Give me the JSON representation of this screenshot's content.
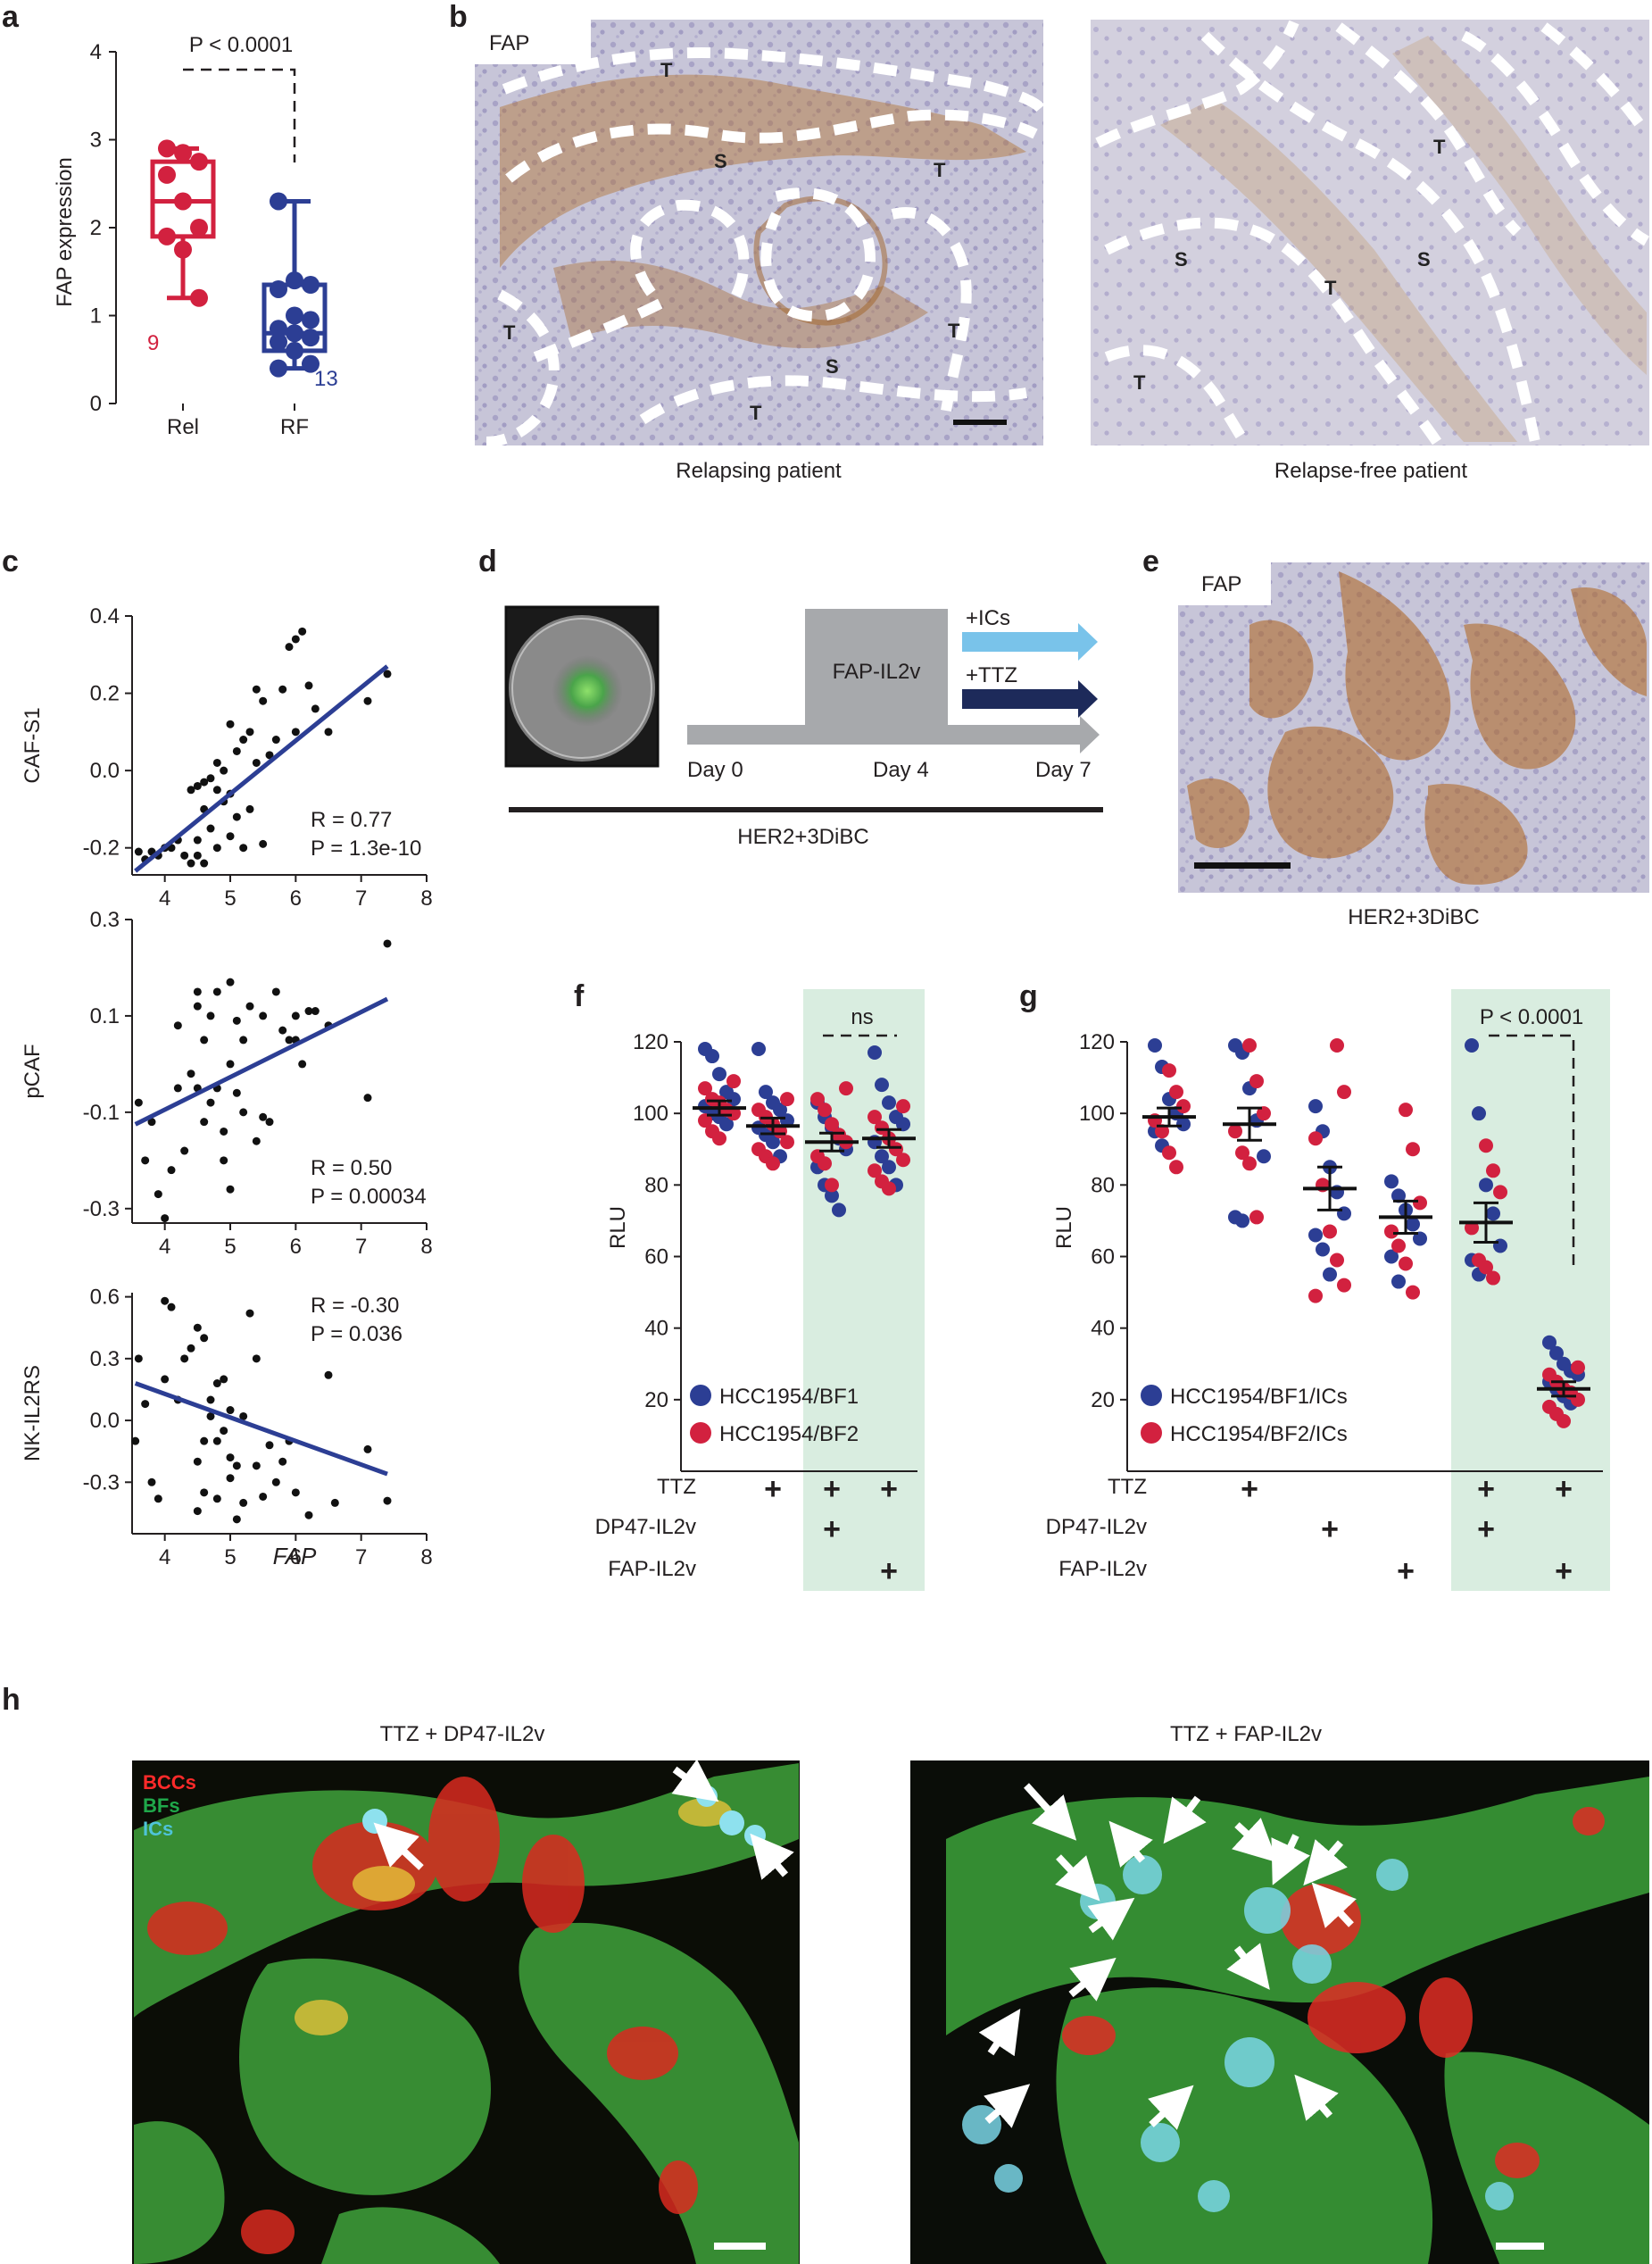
{
  "panels": {
    "a": {
      "label": "a",
      "ylabel": "FAP expression",
      "pvalue": "P < 0.0001",
      "colors": {
        "Rel": "#d2213f",
        "RF": "#2c3e94"
      },
      "n_rel": "9",
      "n_rf": "13"
    },
    "b": {
      "label": "b",
      "stain": "FAP",
      "left_caption": "Relapsing patient",
      "right_caption": "Relapse-free patient",
      "region_labels_left": [
        "T",
        "S",
        "T",
        "T",
        "T",
        "S",
        "T"
      ],
      "region_labels_right": [
        "T",
        "S",
        "S",
        "T",
        "T"
      ]
    },
    "c": {
      "label": "c",
      "xlabel": "FAP"
    },
    "d": {
      "label": "d",
      "box_label": "FAP-IL2v",
      "ics_label": "+ICs",
      "ttz_label": "+TTZ",
      "day0": "Day 0",
      "day4": "Day 4",
      "day7": "Day 7",
      "model": "HER2+3DiBC"
    },
    "e": {
      "label": "e",
      "stain": "FAP",
      "caption": "HER2+3DiBC"
    },
    "f": {
      "label": "f",
      "ylabel": "RLU",
      "ns": "ns",
      "legend": [
        "HCC1954/BF1",
        "HCC1954/BF2"
      ],
      "row_labels": [
        "TTZ",
        "DP47-IL2v",
        "FAP-IL2v"
      ],
      "plus": "+"
    },
    "g": {
      "label": "g",
      "ylabel": "RLU",
      "pvalue": "P < 0.0001",
      "legend": [
        "HCC1954/BF1/ICs",
        "HCC1954/BF2/ICs"
      ],
      "row_labels": [
        "TTZ",
        "DP47-IL2v",
        "FAP-IL2v"
      ],
      "plus": "+"
    },
    "h": {
      "label": "h",
      "left_title": "TTZ + DP47-IL2v",
      "right_title": "TTZ + FAP-IL2v",
      "legend": [
        "BCCs",
        "BFs",
        "ICs"
      ],
      "legend_colors": [
        "#ff2a2a",
        "#1fa84a",
        "#4fc3d8"
      ]
    }
  },
  "chart_data": [
    {
      "panel": "a",
      "type": "box",
      "categories": [
        "Rel",
        "RF"
      ],
      "ylabel": "FAP expression",
      "ylim": [
        0,
        4
      ],
      "yticks": [
        0,
        1,
        2,
        3,
        4
      ],
      "series": [
        {
          "name": "Rel",
          "n": "9",
          "values": [
            2.9,
            2.85,
            2.75,
            2.6,
            2.3,
            2.0,
            1.9,
            1.75,
            1.2
          ],
          "min": 1.2,
          "q1": 1.9,
          "median": 2.3,
          "q3": 2.75,
          "max": 2.9
        },
        {
          "name": "RF",
          "n": "13",
          "values": [
            2.3,
            1.4,
            1.35,
            1.3,
            1.0,
            0.95,
            0.85,
            0.8,
            0.75,
            0.7,
            0.6,
            0.45,
            0.4
          ],
          "min": 0.4,
          "q1": 0.6,
          "median": 0.8,
          "q3": 1.35,
          "max": 2.3
        }
      ],
      "annotation": "P < 0.0001"
    },
    {
      "panel": "c-top",
      "type": "scatter",
      "ylabel": "CAF-S1",
      "xlim": [
        3.5,
        8
      ],
      "ylim": [
        -0.27,
        0.4
      ],
      "xticks": [
        4,
        5,
        6,
        7,
        8
      ],
      "yticks": [
        -0.2,
        0.0,
        0.2,
        0.4
      ],
      "stats": {
        "r": "R = 0.77",
        "p": "P = 1.3e-10"
      },
      "fit": {
        "x": [
          3.55,
          7.4
        ],
        "y": [
          -0.26,
          0.27
        ]
      },
      "x": [
        3.6,
        3.7,
        3.8,
        3.9,
        4.0,
        4.1,
        4.2,
        4.3,
        4.4,
        4.4,
        4.5,
        4.5,
        4.5,
        4.6,
        4.6,
        4.6,
        4.7,
        4.7,
        4.8,
        4.8,
        4.8,
        4.9,
        4.9,
        5.0,
        5.0,
        5.0,
        5.1,
        5.1,
        5.2,
        5.2,
        5.3,
        5.3,
        5.4,
        5.4,
        5.5,
        5.5,
        5.6,
        5.7,
        5.8,
        5.9,
        6.0,
        6.0,
        6.1,
        6.2,
        6.3,
        6.5,
        7.1,
        7.4
      ],
      "y": [
        -0.21,
        -0.23,
        -0.21,
        -0.22,
        -0.2,
        -0.2,
        -0.18,
        -0.22,
        -0.24,
        -0.05,
        -0.04,
        -0.22,
        -0.18,
        -0.03,
        -0.1,
        -0.24,
        -0.02,
        -0.15,
        -0.2,
        0.02,
        -0.05,
        0.0,
        -0.08,
        0.12,
        -0.06,
        -0.17,
        0.05,
        -0.12,
        0.08,
        -0.2,
        0.1,
        -0.1,
        0.21,
        0.02,
        0.18,
        -0.19,
        0.04,
        0.08,
        0.21,
        0.32,
        0.34,
        0.1,
        0.36,
        0.22,
        0.16,
        0.1,
        0.18,
        0.25
      ]
    },
    {
      "panel": "c-mid",
      "type": "scatter",
      "ylabel": "pCAF",
      "xlim": [
        3.5,
        8
      ],
      "ylim": [
        -0.33,
        0.3
      ],
      "xticks": [
        4,
        5,
        6,
        7,
        8
      ],
      "yticks": [
        -0.3,
        -0.1,
        0.1,
        0.3
      ],
      "stats": {
        "r": "R = 0.50",
        "p": "P = 0.00034"
      },
      "fit": {
        "x": [
          3.55,
          7.4
        ],
        "y": [
          -0.125,
          0.135
        ]
      },
      "x": [
        3.6,
        3.7,
        3.8,
        3.9,
        4.0,
        4.1,
        4.2,
        4.2,
        4.3,
        4.4,
        4.5,
        4.5,
        4.5,
        4.6,
        4.6,
        4.7,
        4.7,
        4.8,
        4.8,
        4.9,
        4.9,
        5.0,
        5.0,
        5.0,
        5.1,
        5.1,
        5.2,
        5.2,
        5.3,
        5.4,
        5.5,
        5.5,
        5.6,
        5.7,
        5.8,
        5.9,
        6.0,
        6.0,
        6.1,
        6.2,
        6.3,
        6.5,
        7.1,
        7.4
      ],
      "y": [
        -0.08,
        -0.2,
        -0.12,
        -0.27,
        -0.32,
        -0.22,
        -0.05,
        0.08,
        -0.18,
        -0.02,
        0.15,
        -0.05,
        0.12,
        0.05,
        -0.12,
        -0.08,
        0.1,
        0.15,
        -0.05,
        -0.14,
        -0.2,
        0.17,
        0.0,
        -0.26,
        0.09,
        -0.06,
        -0.1,
        0.05,
        0.12,
        -0.16,
        0.1,
        -0.11,
        -0.12,
        0.15,
        0.07,
        0.05,
        0.05,
        0.1,
        0.0,
        0.11,
        0.11,
        0.08,
        -0.07,
        0.25
      ]
    },
    {
      "panel": "c-bot",
      "type": "scatter",
      "ylabel": "NK-IL2RS",
      "xlabel": "FAP",
      "xlim": [
        3.5,
        8
      ],
      "ylim": [
        -0.55,
        0.62
      ],
      "xticks": [
        4,
        5,
        6,
        7,
        8
      ],
      "yticks": [
        -0.3,
        0.0,
        0.3,
        0.6
      ],
      "stats": {
        "r": "R = -0.30",
        "p": "P = 0.036"
      },
      "fit": {
        "x": [
          3.55,
          7.4
        ],
        "y": [
          0.18,
          -0.26
        ]
      },
      "x": [
        3.55,
        3.6,
        3.7,
        3.8,
        3.9,
        4.0,
        4.0,
        4.1,
        4.2,
        4.3,
        4.4,
        4.5,
        4.5,
        4.5,
        4.6,
        4.6,
        4.6,
        4.7,
        4.7,
        4.8,
        4.8,
        4.8,
        4.9,
        4.9,
        5.0,
        5.0,
        5.0,
        5.1,
        5.1,
        5.2,
        5.2,
        5.3,
        5.4,
        5.4,
        5.5,
        5.6,
        5.7,
        5.8,
        5.9,
        6.0,
        6.2,
        6.5,
        6.6,
        7.1,
        7.4
      ],
      "y": [
        -0.1,
        0.3,
        0.08,
        -0.3,
        -0.38,
        0.58,
        0.2,
        0.55,
        0.1,
        0.3,
        0.35,
        0.45,
        -0.2,
        -0.44,
        0.4,
        -0.1,
        -0.35,
        0.02,
        0.1,
        0.18,
        -0.1,
        -0.38,
        0.2,
        -0.05,
        0.05,
        -0.18,
        -0.28,
        -0.22,
        -0.48,
        0.02,
        -0.4,
        0.52,
        0.3,
        -0.22,
        -0.37,
        -0.12,
        -0.3,
        -0.2,
        -0.1,
        -0.35,
        -0.46,
        0.22,
        -0.4,
        -0.14,
        -0.39
      ]
    },
    {
      "panel": "f",
      "type": "scatter",
      "ylabel": "RLU",
      "ylim": [
        10,
        120
      ],
      "yticks": [
        20,
        40,
        60,
        80,
        100,
        120
      ],
      "groups": [
        {
          "mean": 101.5,
          "sem": 2.0,
          "BF1": [
            118,
            116,
            111,
            106,
            104,
            102,
            100,
            99,
            97
          ],
          "BF2": [
            109,
            107,
            104,
            103,
            101,
            100,
            98,
            95,
            93
          ]
        },
        {
          "mean": 96.5,
          "sem": 2.2,
          "BF1": [
            118,
            106,
            103,
            101,
            98,
            96,
            94,
            92,
            88
          ],
          "BF2": [
            104,
            101,
            99,
            97,
            95,
            92,
            90,
            88,
            86
          ]
        },
        {
          "mean": 92.0,
          "sem": 2.5,
          "BF1": [
            103,
            99,
            96,
            93,
            90,
            85,
            80,
            77,
            73
          ],
          "BF2": [
            107,
            104,
            101,
            97,
            94,
            92,
            88,
            86,
            80
          ]
        },
        {
          "mean": 93.0,
          "sem": 2.5,
          "BF1": [
            117,
            108,
            103,
            99,
            97,
            92,
            88,
            85,
            80
          ],
          "BF2": [
            102,
            99,
            96,
            93,
            90,
            87,
            84,
            81,
            79
          ]
        }
      ],
      "annotation": "ns"
    },
    {
      "panel": "g",
      "type": "scatter",
      "ylabel": "RLU",
      "ylim": [
        10,
        120
      ],
      "yticks": [
        20,
        40,
        60,
        80,
        100,
        120
      ],
      "groups": [
        {
          "mean": 99.0,
          "sem": 2.5,
          "BF1": [
            119,
            113,
            104,
            100,
            97,
            95,
            91
          ],
          "BF2": [
            112,
            106,
            102,
            98,
            95,
            89,
            85
          ]
        },
        {
          "mean": 97.0,
          "sem": 4.5,
          "BF1": [
            119,
            117,
            107,
            98,
            88,
            71,
            70
          ],
          "BF2": [
            119,
            109,
            100,
            95,
            89,
            86,
            71
          ]
        },
        {
          "mean": 79.0,
          "sem": 6.0,
          "BF1": [
            102,
            95,
            85,
            78,
            72,
            66,
            62,
            55
          ],
          "BF2": [
            119,
            106,
            93,
            80,
            67,
            59,
            52,
            49
          ]
        },
        {
          "mean": 71.0,
          "sem": 4.5,
          "BF1": [
            81,
            77,
            73,
            69,
            65,
            60,
            53
          ],
          "BF2": [
            101,
            90,
            75,
            67,
            63,
            58,
            50
          ]
        },
        {
          "mean": 69.5,
          "sem": 5.5,
          "BF1": [
            119,
            100,
            80,
            72,
            63,
            59,
            55
          ],
          "BF2": [
            91,
            84,
            78,
            68,
            59,
            57,
            54
          ]
        },
        {
          "mean": 23.0,
          "sem": 2.0,
          "BF1": [
            36,
            33,
            30,
            28,
            27,
            25,
            23,
            21,
            19
          ],
          "BF2": [
            29,
            27,
            25,
            23,
            22,
            20,
            18,
            16,
            14
          ]
        }
      ],
      "annotation": "P < 0.0001"
    }
  ]
}
